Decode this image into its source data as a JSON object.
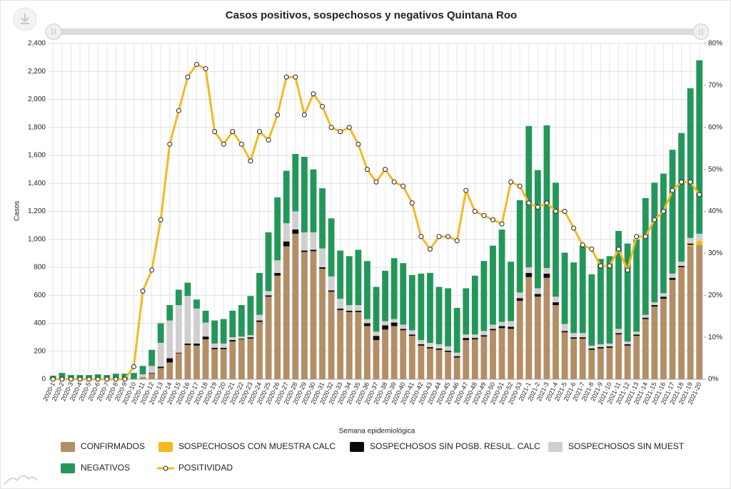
{
  "chart_data": {
    "type": "bar",
    "stacked": true,
    "title": "Casos positivos, sospechosos y negativos Quintana Roo",
    "x_label": "Semana epidemiológica",
    "y_label": "Casos",
    "categories": [
      "2020-1",
      "2020-2",
      "2020-3",
      "2020-4",
      "2020-5",
      "2020-6",
      "2020-7",
      "2020-8",
      "2020-9",
      "2020-10",
      "2020-11",
      "2020-12",
      "2020-13",
      "2020-14",
      "2020-15",
      "2020-16",
      "2020-17",
      "2020-18",
      "2020-19",
      "2020-20",
      "2020-21",
      "2020-22",
      "2020-23",
      "2020-24",
      "2020-25",
      "2020-26",
      "2020-27",
      "2020-28",
      "2020-29",
      "2020-30",
      "2020-31",
      "2020-32",
      "2020-33",
      "2020-34",
      "2020-35",
      "2020-36",
      "2020-37",
      "2020-38",
      "2020-39",
      "2020-40",
      "2020-41",
      "2020-42",
      "2020-43",
      "2020-44",
      "2020-45",
      "2020-46",
      "2020-47",
      "2020-48",
      "2020-49",
      "2020-50",
      "2020-51",
      "2020-52",
      "2020-53",
      "2021-1",
      "2021-2",
      "2021-3",
      "2021-4",
      "2021-5",
      "2021-6",
      "2021-7",
      "2021-8",
      "2021-9",
      "2021-10",
      "2021-11",
      "2021-12",
      "2021-13",
      "2021-14",
      "2021-15",
      "2021-16",
      "2021-17",
      "2021-18",
      "2021-19",
      "2021-20"
    ],
    "series": [
      {
        "name": "CONFIRMADOS",
        "color": "#b38e66",
        "values": [
          0,
          0,
          0,
          0,
          0,
          0,
          0,
          0,
          0,
          2,
          15,
          40,
          80,
          120,
          185,
          245,
          240,
          285,
          215,
          215,
          270,
          285,
          290,
          410,
          590,
          740,
          950,
          1040,
          910,
          915,
          790,
          625,
          495,
          480,
          480,
          380,
          280,
          355,
          380,
          350,
          310,
          240,
          220,
          210,
          195,
          155,
          280,
          285,
          305,
          350,
          365,
          360,
          560,
          730,
          590,
          725,
          530,
          335,
          290,
          290,
          210,
          220,
          225,
          320,
          240,
          310,
          430,
          520,
          575,
          710,
          795,
          950,
          960
        ]
      },
      {
        "name": "SOSPECHOSOS CON MUESTRA CALC",
        "color": "#f5bb1e",
        "values": [
          0,
          0,
          0,
          0,
          0,
          0,
          0,
          0,
          0,
          0,
          0,
          0,
          0,
          0,
          0,
          0,
          0,
          0,
          0,
          0,
          0,
          0,
          0,
          0,
          0,
          0,
          0,
          0,
          0,
          0,
          0,
          0,
          0,
          0,
          0,
          0,
          0,
          0,
          0,
          0,
          0,
          0,
          0,
          0,
          0,
          0,
          0,
          0,
          0,
          0,
          0,
          0,
          0,
          0,
          0,
          0,
          0,
          0,
          0,
          0,
          0,
          0,
          0,
          0,
          0,
          0,
          0,
          0,
          0,
          0,
          5,
          10,
          30
        ]
      },
      {
        "name": "SOSPECHOSOS SIN POSB. RESUL. CALC",
        "color": "#0a0a0a",
        "values": [
          0,
          0,
          0,
          0,
          0,
          0,
          0,
          0,
          0,
          0,
          0,
          5,
          10,
          30,
          5,
          10,
          15,
          20,
          10,
          10,
          10,
          5,
          10,
          10,
          10,
          20,
          35,
          30,
          10,
          10,
          10,
          10,
          10,
          10,
          10,
          20,
          30,
          30,
          25,
          10,
          10,
          10,
          10,
          10,
          10,
          10,
          15,
          10,
          10,
          10,
          15,
          15,
          20,
          30,
          20,
          30,
          20,
          10,
          10,
          10,
          10,
          10,
          10,
          10,
          10,
          10,
          10,
          10,
          15,
          15,
          10,
          10,
          0
        ]
      },
      {
        "name": "SOSPECHOSOS SIN MUEST",
        "color": "#cfcfcf",
        "values": [
          0,
          0,
          0,
          0,
          0,
          0,
          0,
          0,
          0,
          0,
          20,
          50,
          170,
          270,
          340,
          340,
          250,
          100,
          30,
          30,
          20,
          15,
          15,
          40,
          30,
          90,
          130,
          130,
          130,
          125,
          135,
          100,
          70,
          40,
          40,
          30,
          30,
          30,
          25,
          30,
          30,
          30,
          30,
          30,
          30,
          25,
          25,
          25,
          30,
          30,
          30,
          40,
          40,
          40,
          40,
          40,
          40,
          50,
          30,
          30,
          20,
          20,
          20,
          30,
          20,
          20,
          20,
          20,
          25,
          30,
          30,
          40,
          50
        ]
      },
      {
        "name": "NEGATIVOS",
        "color": "#23975a",
        "values": [
          25,
          45,
          30,
          30,
          30,
          35,
          30,
          40,
          40,
          43,
          60,
          115,
          140,
          110,
          110,
          95,
          65,
          85,
          165,
          175,
          190,
          225,
          280,
          300,
          420,
          450,
          375,
          410,
          540,
          450,
          430,
          415,
          345,
          350,
          395,
          415,
          320,
          360,
          435,
          440,
          395,
          475,
          500,
          410,
          415,
          320,
          330,
          420,
          500,
          565,
          660,
          425,
          660,
          1010,
          845,
          1020,
          815,
          510,
          505,
          625,
          510,
          610,
          625,
          700,
          700,
          660,
          835,
          855,
          855,
          885,
          920,
          1070,
          1240
        ]
      },
      {
        "name": "POSITIVIDAD",
        "color": "#f7b822",
        "type": "line",
        "axis": "y2",
        "values": [
          0,
          0,
          0,
          0,
          0,
          0,
          0,
          0,
          0,
          3,
          21,
          26,
          38,
          56,
          64,
          72,
          75,
          74,
          59,
          56,
          59,
          56,
          52,
          59,
          57,
          63,
          72,
          72,
          63,
          68,
          65,
          60,
          59,
          60,
          56,
          50,
          47,
          50,
          47,
          46,
          42,
          34,
          31,
          34,
          34,
          33,
          45,
          40,
          39,
          38,
          37,
          47,
          46,
          42,
          41,
          42,
          40,
          40,
          36,
          32,
          31,
          27,
          27,
          31,
          26,
          34,
          34,
          38,
          40,
          45,
          47,
          47,
          44
        ]
      }
    ],
    "ylim": [
      0,
      2400
    ],
    "yticks": [
      0,
      200,
      400,
      600,
      800,
      {
        "value": 1000,
        "label": "1,000"
      },
      {
        "value": 1200,
        "label": "1,200"
      },
      {
        "value": 1400,
        "label": "1,400"
      },
      {
        "value": 1600,
        "label": "1,600"
      },
      {
        "value": 1800,
        "label": "1,800"
      },
      {
        "value": 2000,
        "label": "2,000"
      },
      {
        "value": 2200,
        "label": "2,200"
      },
      {
        "value": 2400,
        "label": "2,400"
      }
    ],
    "y2lim": [
      0,
      80
    ],
    "y2ticks": [
      {
        "value": 0,
        "label": "0%"
      },
      {
        "value": 10,
        "label": "10%"
      },
      {
        "value": 20,
        "label": "20%"
      },
      {
        "value": 30,
        "label": "30%"
      },
      {
        "value": 40,
        "label": "40%"
      },
      {
        "value": 50,
        "label": "50%"
      },
      {
        "value": 60,
        "label": "60%"
      },
      {
        "value": 70,
        "label": "70%"
      },
      {
        "value": 80,
        "label": "80%"
      }
    ],
    "grid": true,
    "legend": "bottom"
  }
}
